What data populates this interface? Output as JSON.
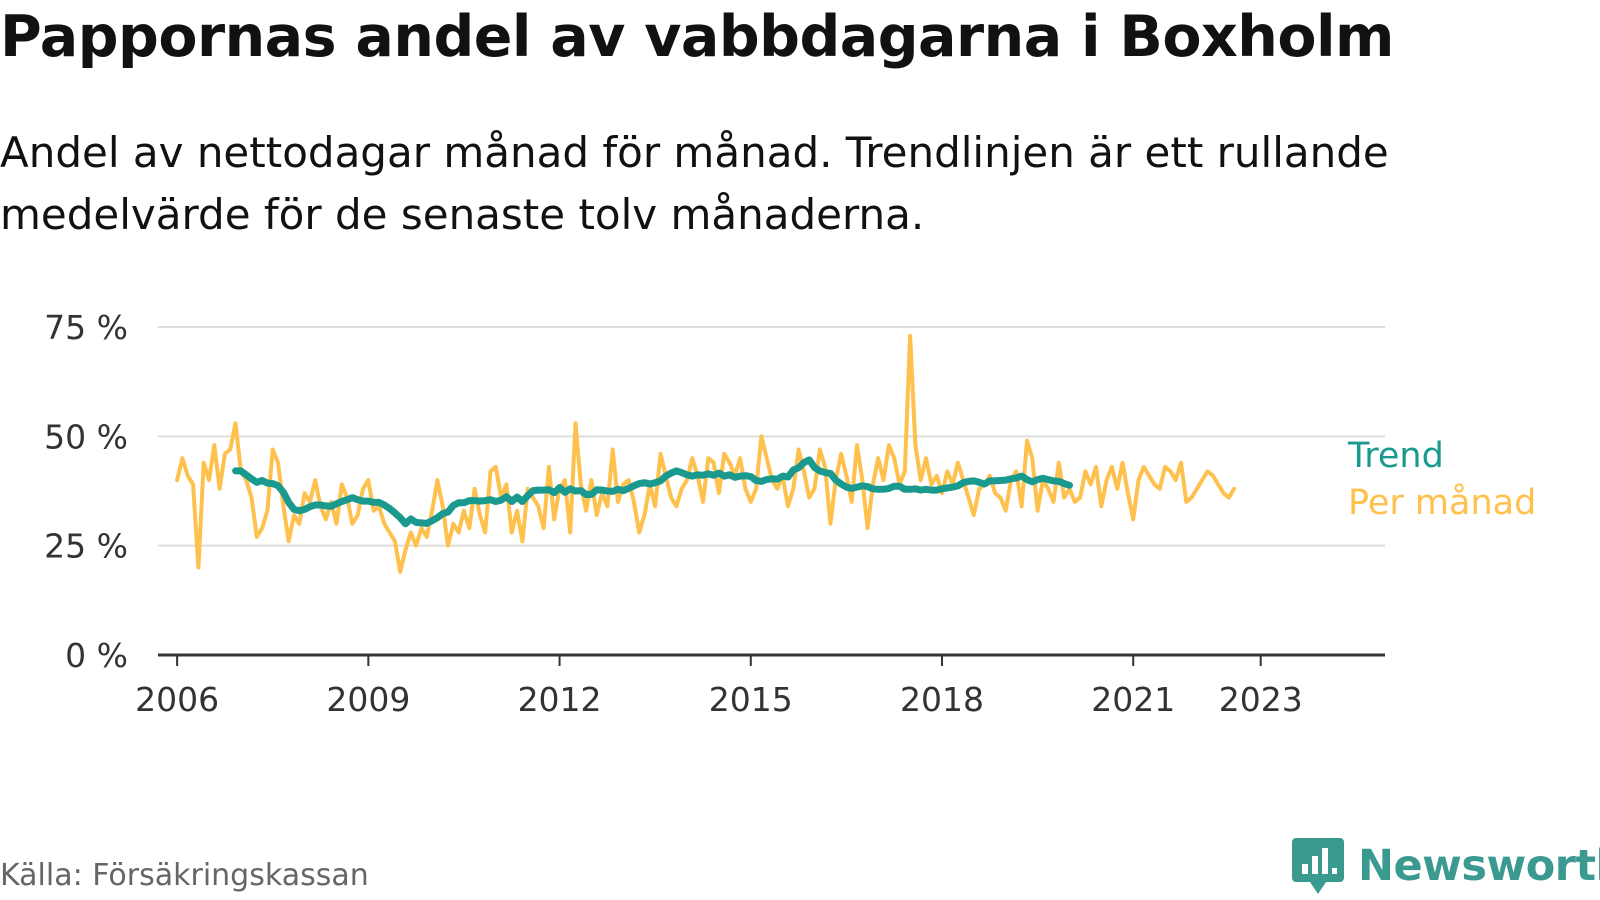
{
  "title": "Pappornas andel av vabbdagarna i Boxholm",
  "subtitle": "Andel av nettodagar månad för månad. Trendlinjen är ett rullande medelvärde för de senaste tolv månaderna.",
  "source": "Källa: Försäkringskassan",
  "brand": "Newsworthy",
  "colors": {
    "trend": "#1a9a8e",
    "monthly": "#ffc14d",
    "grid": "#dddddd",
    "axis": "#333333",
    "brand": "#3a9a90"
  },
  "chart_data": {
    "type": "line",
    "x_unit": "year",
    "ylim": [
      0,
      75
    ],
    "yticks": [
      0,
      25,
      50,
      75
    ],
    "ytick_labels": [
      "0 %",
      "25 %",
      "50 %",
      "75 %"
    ],
    "xticks": [
      2006,
      2009,
      2012,
      2015,
      2018,
      2021,
      2023
    ],
    "xtick_labels": [
      "2006",
      "2009",
      "2012",
      "2015",
      "2018",
      "2021",
      "2023"
    ],
    "grid": true,
    "legend_placement": "right end of lines",
    "series": [
      {
        "name": "Per månad",
        "color": "#ffc14d",
        "x_start": 2006.0,
        "step": 0.08333,
        "values": [
          40,
          45,
          41,
          39,
          20,
          44,
          40,
          48,
          38,
          46,
          47,
          53,
          42,
          40,
          36,
          27,
          29,
          33,
          47,
          44,
          34,
          26,
          32,
          30,
          37,
          35,
          40,
          34,
          31,
          35,
          30,
          39,
          36,
          30,
          32,
          38,
          40,
          33,
          34,
          30,
          28,
          26,
          19,
          24,
          28,
          25,
          29,
          27,
          33,
          40,
          34,
          25,
          30,
          28,
          33,
          29,
          38,
          32,
          28,
          42,
          43,
          36,
          39,
          28,
          33,
          26,
          38,
          36,
          34,
          29,
          43,
          31,
          38,
          40,
          28,
          53,
          39,
          33,
          40,
          32,
          37,
          34,
          47,
          35,
          39,
          40,
          35,
          28,
          32,
          39,
          34,
          46,
          41,
          36,
          34,
          38,
          40,
          45,
          41,
          35,
          45,
          44,
          37,
          46,
          44,
          41,
          45,
          38,
          35,
          38,
          50,
          45,
          40,
          38,
          41,
          34,
          38,
          47,
          42,
          36,
          38,
          47,
          43,
          30,
          40,
          46,
          41,
          35,
          48,
          40,
          29,
          39,
          45,
          40,
          48,
          45,
          39,
          42,
          73,
          48,
          40,
          45,
          39,
          41,
          37,
          42,
          39,
          44,
          40,
          36,
          32,
          38,
          39,
          41,
          37,
          36,
          33,
          40,
          42,
          34,
          49,
          45,
          33,
          40,
          38,
          35,
          44,
          36,
          38,
          35,
          36,
          42,
          39,
          43,
          34,
          40,
          43,
          38,
          44,
          37,
          31,
          40,
          43,
          41,
          39,
          38,
          43,
          42,
          40,
          44,
          35,
          36,
          38,
          40,
          42,
          41,
          39,
          37,
          36,
          38
        ]
      },
      {
        "name": "Trend",
        "color": "#1a9a8e",
        "x_start": 2006.917,
        "step": 0.08333,
        "values": [
          42.1,
          42.1,
          41.2,
          40.3,
          39.5,
          39.9,
          39.3,
          39.2,
          38.7,
          37.2,
          34.9,
          33.3,
          33.0,
          33.3,
          33.9,
          34.3,
          34.3,
          34.1,
          34.0,
          34.6,
          35.1,
          35.5,
          36.0,
          35.5,
          35.2,
          35.2,
          34.9,
          34.9,
          34.3,
          33.5,
          32.5,
          31.4,
          30.0,
          31.1,
          30.3,
          30.2,
          30.1,
          30.7,
          31.4,
          32.3,
          32.7,
          34.2,
          34.8,
          34.8,
          35.3,
          35.3,
          35.2,
          35.3,
          35.5,
          35.1,
          35.4,
          36.2,
          35.1,
          36.1,
          35.1,
          36.4,
          37.6,
          37.7,
          37.7,
          37.8,
          37.1,
          38.3,
          37.2,
          38.0,
          37.5,
          37.6,
          36.7,
          36.7,
          37.8,
          37.7,
          37.5,
          37.4,
          37.9,
          37.6,
          38.1,
          38.7,
          39.2,
          39.4,
          39.1,
          39.4,
          39.8,
          40.9,
          41.6,
          42.1,
          41.7,
          41.2,
          40.9,
          41.2,
          41.1,
          41.4,
          41.1,
          41.6,
          40.9,
          41.2,
          40.6,
          40.9,
          41.0,
          40.8,
          39.9,
          39.7,
          40.1,
          40.3,
          40.2,
          40.9,
          40.7,
          42.3,
          42.8,
          44.0,
          44.6,
          42.9,
          42.1,
          41.7,
          41.5,
          40.0,
          39.1,
          38.4,
          38.1,
          38.4,
          38.7,
          38.5,
          38.0,
          37.9,
          37.9,
          38.1,
          38.6,
          38.6,
          37.9,
          37.9,
          38.0,
          37.7,
          37.9,
          37.7,
          37.7,
          38.0,
          38.2,
          38.4,
          38.7,
          39.4,
          39.7,
          39.8,
          39.5,
          39.1,
          39.8,
          39.8,
          39.9,
          40.0,
          40.3,
          40.5,
          40.9,
          40.1,
          39.6,
          40.1,
          40.4,
          40.1,
          39.8,
          39.7,
          39.2,
          38.8
        ]
      }
    ]
  }
}
